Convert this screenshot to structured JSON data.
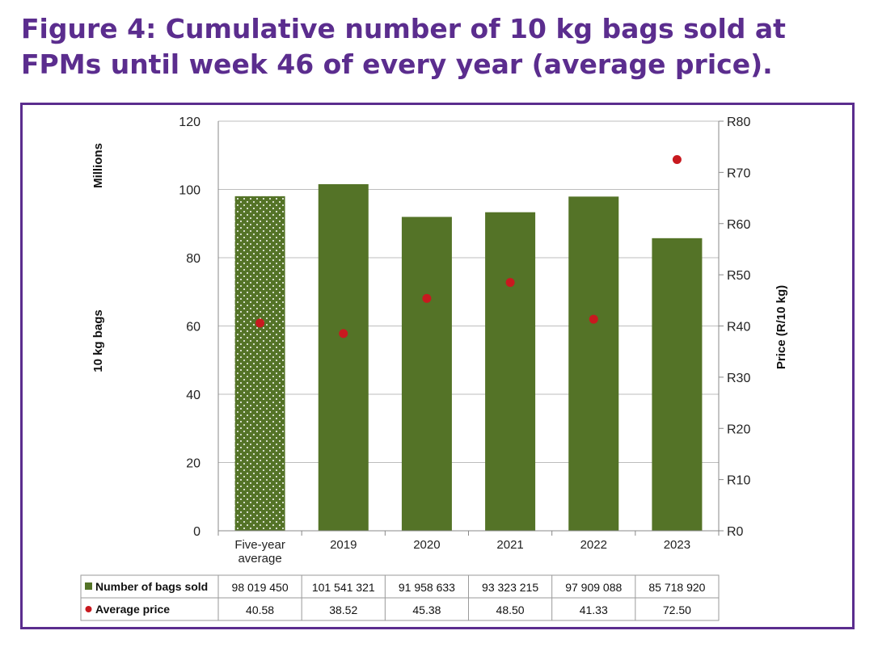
{
  "title": "Figure 4: Cumulative number of 10 kg bags sold at FPMs until week 46 of every year (average price).",
  "colors": {
    "title": "#5b2d8e",
    "bar": "#547327",
    "price_dot": "#c8191f",
    "frame": "#5b2d8e"
  },
  "chart_data": {
    "type": "bar",
    "categories": [
      "Five-year average",
      "2019",
      "2020",
      "2021",
      "2022",
      "2023"
    ],
    "category_lines": [
      [
        "Five-year",
        "average"
      ],
      [
        "2019"
      ],
      [
        "2020"
      ],
      [
        "2021"
      ],
      [
        "2022"
      ],
      [
        "2023"
      ]
    ],
    "series": [
      {
        "name": "Number of bags sold",
        "type": "bar",
        "axis": "left",
        "values": [
          98.01945,
          101.541321,
          91.958633,
          93.323215,
          97.909088,
          85.71892
        ],
        "labels": [
          "98 019 450",
          "101 541 321",
          "91 958 633",
          "93 323 215",
          "97 909 088",
          "85 718 920"
        ],
        "pattern_first": "dotted"
      },
      {
        "name": "Average price",
        "type": "scatter",
        "axis": "right",
        "values": [
          40.58,
          38.52,
          45.38,
          48.5,
          41.33,
          72.5
        ],
        "labels": [
          "40.58",
          "38.52",
          "45.38",
          "48.50",
          "41.33",
          "72.50"
        ]
      }
    ],
    "left_axis": {
      "title": "10 kg bags",
      "units_label": "Millions",
      "min": 0,
      "max": 120,
      "ticks": [
        "0",
        "20",
        "40",
        "60",
        "80",
        "100",
        "120"
      ]
    },
    "right_axis": {
      "title": "Price (R/10 kg)",
      "min": 0,
      "max": 80,
      "ticks": [
        "R0",
        "R10",
        "R20",
        "R30",
        "R40",
        "R50",
        "R60",
        "R70",
        "R80"
      ]
    },
    "grid": true,
    "legend": "data table below chart"
  }
}
